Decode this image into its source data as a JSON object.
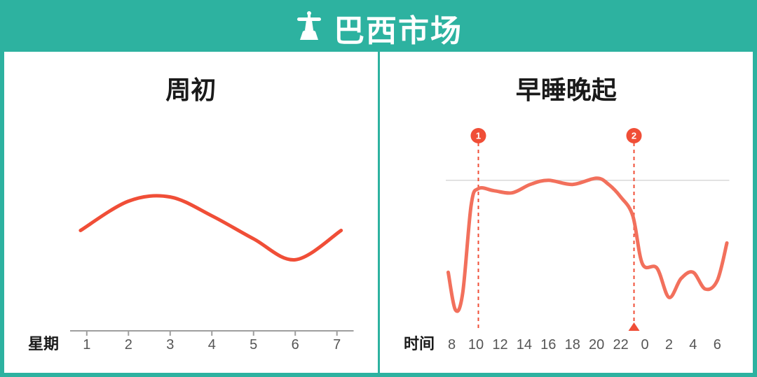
{
  "colors": {
    "teal": "#2db2a0",
    "orange": "#f04e37",
    "orange_soft": "#f2705c",
    "axis": "#9e9e9e",
    "grid": "#d8d8d8",
    "text": "#1a1a1a",
    "tick": "#555555",
    "bg": "#ffffff"
  },
  "header": {
    "title": "巴西市场",
    "icon": "christ-statue-icon"
  },
  "left_chart": {
    "type": "line",
    "title": "周初",
    "x_label": "星期",
    "x_ticks": [
      "1",
      "2",
      "3",
      "4",
      "5",
      "6",
      "7"
    ],
    "x_domain": [
      0.6,
      7.4
    ],
    "y_domain": [
      0,
      100
    ],
    "line_width": 5,
    "line_color": "#f04e37",
    "axis_line": true,
    "series": [
      {
        "x": 0.85,
        "y": 48
      },
      {
        "x": 2.0,
        "y": 62
      },
      {
        "x": 3.0,
        "y": 64
      },
      {
        "x": 4.0,
        "y": 55
      },
      {
        "x": 5.0,
        "y": 44
      },
      {
        "x": 6.0,
        "y": 34
      },
      {
        "x": 7.1,
        "y": 48
      }
    ]
  },
  "right_chart": {
    "type": "line",
    "title": "早睡晚起",
    "x_label": "时间",
    "x_ticks": [
      "8",
      "10",
      "12",
      "14",
      "16",
      "18",
      "20",
      "22",
      "0",
      "2",
      "4",
      "6"
    ],
    "x_tick_values": [
      8,
      10,
      12,
      14,
      16,
      18,
      20,
      22,
      24,
      26,
      28,
      30
    ],
    "x_domain": [
      7.5,
      31.0
    ],
    "y_domain": [
      0,
      100
    ],
    "line_width": 5,
    "line_color": "#f2705c",
    "axis_line": false,
    "grid_ref_y": 72,
    "grid_ref_color": "#d8d8d8",
    "markers": [
      {
        "id": "1",
        "x": 10.2,
        "badge_color": "#f04e37",
        "triangle": false
      },
      {
        "id": "2",
        "x": 23.1,
        "badge_color": "#f04e37",
        "triangle": true
      }
    ],
    "series": [
      {
        "x": 7.7,
        "y": 28
      },
      {
        "x": 8.3,
        "y": 10
      },
      {
        "x": 8.9,
        "y": 18
      },
      {
        "x": 9.6,
        "y": 60
      },
      {
        "x": 10.2,
        "y": 68
      },
      {
        "x": 11.5,
        "y": 67
      },
      {
        "x": 13.0,
        "y": 66
      },
      {
        "x": 14.5,
        "y": 70
      },
      {
        "x": 16.0,
        "y": 72
      },
      {
        "x": 18.0,
        "y": 70
      },
      {
        "x": 20.0,
        "y": 73
      },
      {
        "x": 21.0,
        "y": 70
      },
      {
        "x": 22.0,
        "y": 64
      },
      {
        "x": 23.0,
        "y": 55
      },
      {
        "x": 23.8,
        "y": 32
      },
      {
        "x": 25.0,
        "y": 30
      },
      {
        "x": 26.0,
        "y": 16
      },
      {
        "x": 27.0,
        "y": 25
      },
      {
        "x": 28.0,
        "y": 28
      },
      {
        "x": 29.0,
        "y": 20
      },
      {
        "x": 30.0,
        "y": 24
      },
      {
        "x": 30.8,
        "y": 42
      }
    ]
  }
}
